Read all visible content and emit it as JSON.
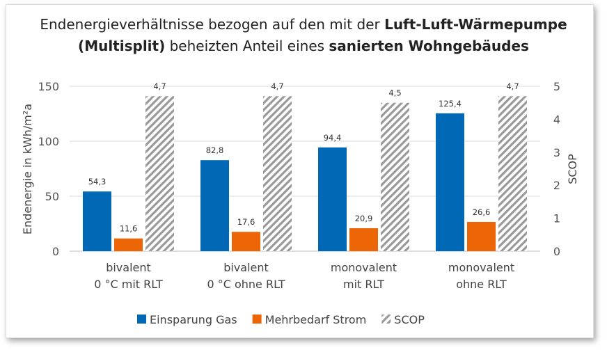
{
  "title": {
    "part1": "Endenergieverhältnisse bezogen auf den mit der ",
    "bold1": "Luft-Luft-Wärmepumpe",
    "part2": "(Multisplit)",
    "part3": " beheizten Anteil eines ",
    "bold2": "sanierten Wohngebäudes"
  },
  "chart_data": {
    "type": "bar",
    "categories": [
      [
        "bivalent",
        "0 °C mit RLT"
      ],
      [
        "bivalent",
        "0 °C ohne RLT"
      ],
      [
        "monovalent",
        "mit RLT"
      ],
      [
        "monovalent",
        "ohne RLT"
      ]
    ],
    "series": [
      {
        "name": "Einsparung Gas",
        "axis": "left",
        "color": "#0068B4",
        "values": [
          54.3,
          82.8,
          94.4,
          125.4
        ],
        "labels": [
          "54,3",
          "82,8",
          "94,4",
          "125,4"
        ]
      },
      {
        "name": "Mehrbedarf Strom",
        "axis": "left",
        "color": "#EC6608",
        "values": [
          11.6,
          17.6,
          20.9,
          26.6
        ],
        "labels": [
          "11,6",
          "17,6",
          "20,9",
          "26,6"
        ]
      },
      {
        "name": "SCOP",
        "axis": "right",
        "color": "#999999",
        "pattern": "diagonal-hatch",
        "values": [
          4.7,
          4.7,
          4.5,
          4.7
        ],
        "labels": [
          "4,7",
          "4,7",
          "4,5",
          "4,7"
        ]
      }
    ],
    "ylabel": "Endenergie in kWh/m²a",
    "ylim": [
      0,
      150
    ],
    "yticks": [
      "0",
      "50",
      "100",
      "150"
    ],
    "y2label": "SCOP",
    "y2lim": [
      0,
      5
    ],
    "y2ticks": [
      "0",
      "1",
      "2",
      "3",
      "4",
      "5"
    ],
    "grid": true,
    "legend": "bottom"
  }
}
